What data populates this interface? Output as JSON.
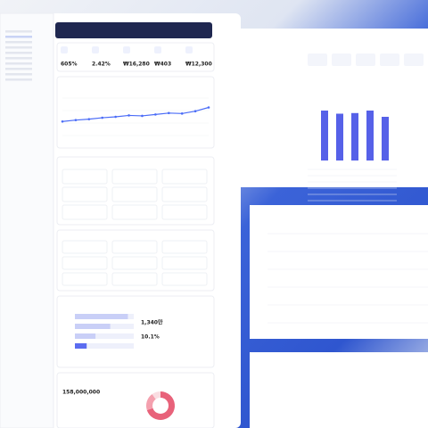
{
  "kpis": [
    "605%",
    "2.42%",
    "₩16,280",
    "₩403",
    "₩12,300"
  ],
  "line_chart": {
    "type": "line",
    "color": "#4a6cf7",
    "values": [
      30,
      33,
      35,
      38,
      40,
      43,
      42,
      45,
      48,
      47,
      52,
      60
    ],
    "ylim": [
      0,
      80
    ]
  },
  "bar_list": {
    "type": "bar",
    "color": "#5b6cf0",
    "values": [
      90,
      60,
      35,
      20
    ],
    "xlim": [
      0,
      100
    ]
  },
  "stats": [
    "1,340만",
    "10.1%"
  ],
  "total": "158,000,000",
  "donut": {
    "type": "pie",
    "values": [
      70,
      20,
      10
    ],
    "colors": [
      "#e8627a",
      "#f4a0ae",
      "#fadde2"
    ]
  },
  "panel_bars": {
    "type": "bar",
    "color": "#5661e8",
    "values": [
      80,
      75,
      76,
      80,
      70
    ],
    "ylim": [
      0,
      100
    ]
  }
}
